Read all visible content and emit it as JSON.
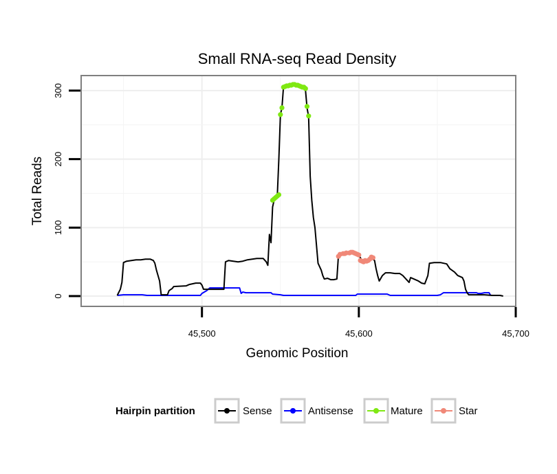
{
  "chart_data": {
    "type": "line",
    "title": "Small RNA-seq Read Density",
    "xlabel": "Genomic Position",
    "ylabel": "Total Reads",
    "xlim": [
      45423,
      45700
    ],
    "ylim": [
      -15,
      322
    ],
    "x_ticks": [
      45500,
      45600,
      45700
    ],
    "x_tick_labels": [
      "45,500",
      "45,600",
      "45,700"
    ],
    "y_ticks": [
      0,
      100,
      200,
      300
    ],
    "y_tick_labels": [
      "0",
      "100",
      "200",
      "300"
    ],
    "legend": {
      "title": "Hairpin partition",
      "position": "bottom",
      "entries": [
        "Sense",
        "Antisense",
        "Mature",
        "Star"
      ]
    },
    "series": [
      {
        "name": "Sense",
        "style": "line",
        "color": "#000000",
        "points": [
          [
            45446,
            1
          ],
          [
            45448,
            10
          ],
          [
            45449,
            20
          ],
          [
            45450,
            49
          ],
          [
            45452,
            51
          ],
          [
            45455,
            52
          ],
          [
            45458,
            53
          ],
          [
            45461,
            53
          ],
          [
            45464,
            54
          ],
          [
            45467,
            54
          ],
          [
            45469,
            52
          ],
          [
            45470,
            48
          ],
          [
            45471,
            38
          ],
          [
            45472,
            30
          ],
          [
            45473,
            22
          ],
          [
            45474,
            2
          ],
          [
            45478,
            2
          ],
          [
            45479,
            8
          ],
          [
            45481,
            11
          ],
          [
            45482,
            14
          ],
          [
            45490,
            15
          ],
          [
            45492,
            17
          ],
          [
            45496,
            19
          ],
          [
            45499,
            19
          ],
          [
            45500,
            16
          ],
          [
            45501,
            10
          ],
          [
            45514,
            10
          ],
          [
            45515,
            50
          ],
          [
            45517,
            52
          ],
          [
            45520,
            51
          ],
          [
            45523,
            50
          ],
          [
            45526,
            51
          ],
          [
            45529,
            53
          ],
          [
            45532,
            54
          ],
          [
            45535,
            55
          ],
          [
            45538,
            55
          ],
          [
            45539,
            55
          ],
          [
            45541,
            50
          ],
          [
            45542,
            45
          ],
          [
            45543,
            90
          ],
          [
            45544,
            78
          ],
          [
            45545,
            130
          ],
          [
            45546,
            140
          ],
          [
            45547,
            143
          ],
          [
            45548,
            145
          ],
          [
            45549,
            200
          ],
          [
            45550,
            265
          ],
          [
            45551,
            275
          ],
          [
            45552,
            306
          ],
          [
            45555,
            307
          ],
          [
            45558,
            308
          ],
          [
            45561,
            308
          ],
          [
            45564,
            305
          ],
          [
            45565,
            303
          ],
          [
            45566,
            300
          ],
          [
            45567,
            275
          ],
          [
            45568,
            262
          ],
          [
            45569,
            175
          ],
          [
            45570,
            140
          ],
          [
            45571,
            115
          ],
          [
            45572,
            100
          ],
          [
            45574,
            48
          ],
          [
            45576,
            38
          ],
          [
            45577,
            30
          ],
          [
            45578,
            25
          ],
          [
            45580,
            26
          ],
          [
            45582,
            24
          ],
          [
            45584,
            24
          ],
          [
            45586,
            25
          ],
          [
            45587,
            60
          ],
          [
            45590,
            62
          ],
          [
            45594,
            63
          ],
          [
            45597,
            62
          ],
          [
            45600,
            60
          ],
          [
            45602,
            52
          ],
          [
            45604,
            50
          ],
          [
            45606,
            52
          ],
          [
            45608,
            55
          ],
          [
            45610,
            52
          ],
          [
            45611,
            40
          ],
          [
            45612,
            30
          ],
          [
            45613,
            22
          ],
          [
            45615,
            30
          ],
          [
            45617,
            34
          ],
          [
            45620,
            34
          ],
          [
            45623,
            33
          ],
          [
            45626,
            33
          ],
          [
            45628,
            30
          ],
          [
            45630,
            25
          ],
          [
            45632,
            20
          ],
          [
            45633,
            27
          ],
          [
            45635,
            25
          ],
          [
            45638,
            22
          ],
          [
            45640,
            19
          ],
          [
            45642,
            18
          ],
          [
            45644,
            30
          ],
          [
            45645,
            48
          ],
          [
            45648,
            49
          ],
          [
            45652,
            49
          ],
          [
            45656,
            47
          ],
          [
            45658,
            40
          ],
          [
            45661,
            35
          ],
          [
            45663,
            30
          ],
          [
            45666,
            27
          ],
          [
            45667,
            22
          ],
          [
            45668,
            10
          ],
          [
            45669,
            5
          ],
          [
            45670,
            2
          ],
          [
            45680,
            2
          ],
          [
            45685,
            1
          ],
          [
            45688,
            1
          ],
          [
            45690,
            1
          ],
          [
            45692,
            0
          ]
        ]
      },
      {
        "name": "Antisense",
        "style": "line",
        "color": "#0000FF",
        "points": [
          [
            45446,
            1
          ],
          [
            45450,
            2
          ],
          [
            45455,
            2
          ],
          [
            45462,
            2
          ],
          [
            45465,
            1
          ],
          [
            45470,
            1
          ],
          [
            45475,
            1
          ],
          [
            45480,
            1
          ],
          [
            45485,
            1
          ],
          [
            45490,
            1
          ],
          [
            45495,
            1
          ],
          [
            45499,
            1
          ],
          [
            45500,
            4
          ],
          [
            45503,
            8
          ],
          [
            45505,
            12
          ],
          [
            45508,
            12
          ],
          [
            45515,
            12
          ],
          [
            45520,
            12
          ],
          [
            45524,
            12
          ],
          [
            45525,
            4
          ],
          [
            45526,
            6
          ],
          [
            45528,
            5
          ],
          [
            45535,
            5
          ],
          [
            45540,
            5
          ],
          [
            45544,
            5
          ],
          [
            45545,
            3
          ],
          [
            45550,
            2
          ],
          [
            45552,
            1
          ],
          [
            45555,
            1
          ],
          [
            45560,
            1
          ],
          [
            45570,
            1
          ],
          [
            45580,
            1
          ],
          [
            45590,
            1
          ],
          [
            45598,
            1
          ],
          [
            45599,
            3
          ],
          [
            45610,
            3
          ],
          [
            45618,
            3
          ],
          [
            45620,
            1
          ],
          [
            45630,
            1
          ],
          [
            45640,
            1
          ],
          [
            45650,
            1
          ],
          [
            45652,
            2
          ],
          [
            45654,
            5
          ],
          [
            45660,
            5
          ],
          [
            45670,
            5
          ],
          [
            45675,
            5
          ],
          [
            45676,
            4
          ],
          [
            45678,
            4
          ],
          [
            45680,
            5
          ],
          [
            45683,
            5
          ],
          [
            45684,
            1
          ]
        ]
      },
      {
        "name": "Mature",
        "style": "points",
        "color": "#7FE812",
        "points": [
          [
            45545,
            140
          ],
          [
            45546,
            142
          ],
          [
            45547,
            144
          ],
          [
            45548,
            146
          ],
          [
            45549,
            148
          ],
          [
            45550,
            265
          ],
          [
            45551,
            275
          ],
          [
            45552,
            305
          ],
          [
            45553,
            306
          ],
          [
            45554,
            307
          ],
          [
            45555,
            307
          ],
          [
            45556,
            308
          ],
          [
            45557,
            308
          ],
          [
            45558,
            309
          ],
          [
            45559,
            309
          ],
          [
            45560,
            308
          ],
          [
            45561,
            308
          ],
          [
            45562,
            307
          ],
          [
            45563,
            306
          ],
          [
            45564,
            305
          ],
          [
            45565,
            305
          ],
          [
            45566,
            303
          ],
          [
            45567,
            277
          ],
          [
            45568,
            263
          ]
        ]
      },
      {
        "name": "Star",
        "style": "points",
        "color": "#F08878",
        "points": [
          [
            45587,
            58
          ],
          [
            45588,
            61
          ],
          [
            45590,
            62
          ],
          [
            45591,
            62
          ],
          [
            45592,
            63
          ],
          [
            45594,
            63
          ],
          [
            45595,
            64
          ],
          [
            45596,
            64
          ],
          [
            45597,
            63
          ],
          [
            45598,
            62
          ],
          [
            45599,
            61
          ],
          [
            45600,
            60
          ],
          [
            45601,
            52
          ],
          [
            45602,
            51
          ],
          [
            45603,
            50
          ],
          [
            45604,
            52
          ],
          [
            45605,
            51
          ],
          [
            45606,
            52
          ],
          [
            45607,
            54
          ],
          [
            45608,
            57
          ],
          [
            45609,
            56
          ]
        ]
      }
    ]
  }
}
